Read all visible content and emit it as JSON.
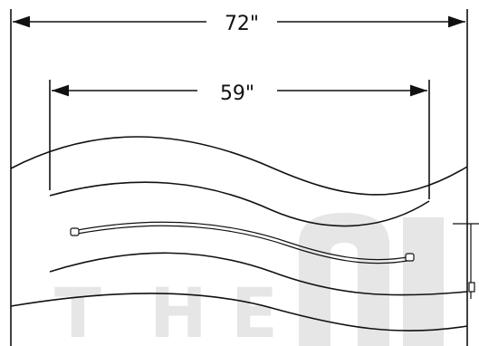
{
  "dimensions": {
    "overall_width_label": "72\"",
    "inner_width_label": "59\""
  },
  "watermark": {
    "letters": [
      "T",
      "H",
      "E"
    ]
  },
  "colors": {
    "line": "#111111",
    "watermark": "#e6e6e6",
    "background": "#ffffff"
  }
}
